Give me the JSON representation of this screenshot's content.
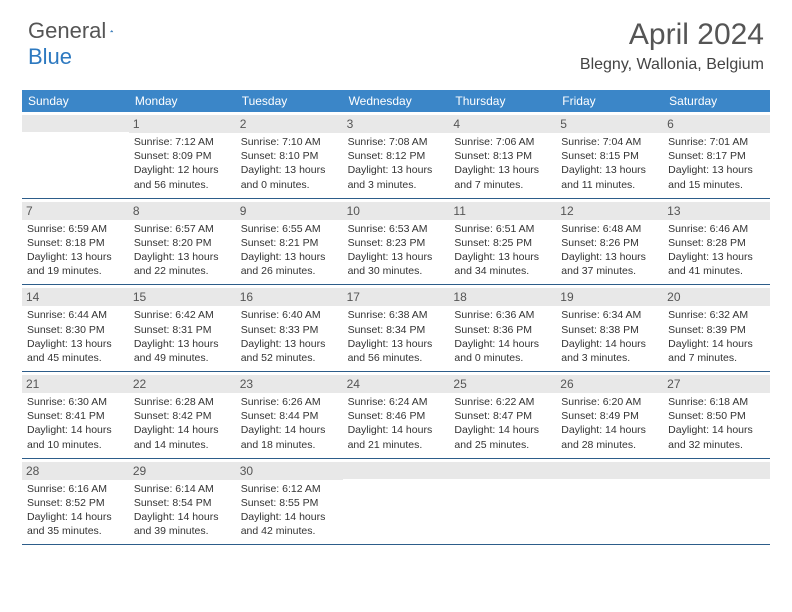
{
  "logo": {
    "text1": "General",
    "text2": "Blue"
  },
  "title": "April 2024",
  "location": "Blegny, Wallonia, Belgium",
  "dayHeaders": [
    "Sunday",
    "Monday",
    "Tuesday",
    "Wednesday",
    "Thursday",
    "Friday",
    "Saturday"
  ],
  "colors": {
    "headerBg": "#3b86c8",
    "borderBottom": "#2d5d8a",
    "dateBarBg": "#e8e8e8",
    "logoBlue": "#2d79c0"
  },
  "weeks": [
    [
      {
        "date": "",
        "sunrise": "",
        "sunset": "",
        "daylight1": "",
        "daylight2": ""
      },
      {
        "date": "1",
        "sunrise": "Sunrise: 7:12 AM",
        "sunset": "Sunset: 8:09 PM",
        "daylight1": "Daylight: 12 hours",
        "daylight2": "and 56 minutes."
      },
      {
        "date": "2",
        "sunrise": "Sunrise: 7:10 AM",
        "sunset": "Sunset: 8:10 PM",
        "daylight1": "Daylight: 13 hours",
        "daylight2": "and 0 minutes."
      },
      {
        "date": "3",
        "sunrise": "Sunrise: 7:08 AM",
        "sunset": "Sunset: 8:12 PM",
        "daylight1": "Daylight: 13 hours",
        "daylight2": "and 3 minutes."
      },
      {
        "date": "4",
        "sunrise": "Sunrise: 7:06 AM",
        "sunset": "Sunset: 8:13 PM",
        "daylight1": "Daylight: 13 hours",
        "daylight2": "and 7 minutes."
      },
      {
        "date": "5",
        "sunrise": "Sunrise: 7:04 AM",
        "sunset": "Sunset: 8:15 PM",
        "daylight1": "Daylight: 13 hours",
        "daylight2": "and 11 minutes."
      },
      {
        "date": "6",
        "sunrise": "Sunrise: 7:01 AM",
        "sunset": "Sunset: 8:17 PM",
        "daylight1": "Daylight: 13 hours",
        "daylight2": "and 15 minutes."
      }
    ],
    [
      {
        "date": "7",
        "sunrise": "Sunrise: 6:59 AM",
        "sunset": "Sunset: 8:18 PM",
        "daylight1": "Daylight: 13 hours",
        "daylight2": "and 19 minutes."
      },
      {
        "date": "8",
        "sunrise": "Sunrise: 6:57 AM",
        "sunset": "Sunset: 8:20 PM",
        "daylight1": "Daylight: 13 hours",
        "daylight2": "and 22 minutes."
      },
      {
        "date": "9",
        "sunrise": "Sunrise: 6:55 AM",
        "sunset": "Sunset: 8:21 PM",
        "daylight1": "Daylight: 13 hours",
        "daylight2": "and 26 minutes."
      },
      {
        "date": "10",
        "sunrise": "Sunrise: 6:53 AM",
        "sunset": "Sunset: 8:23 PM",
        "daylight1": "Daylight: 13 hours",
        "daylight2": "and 30 minutes."
      },
      {
        "date": "11",
        "sunrise": "Sunrise: 6:51 AM",
        "sunset": "Sunset: 8:25 PM",
        "daylight1": "Daylight: 13 hours",
        "daylight2": "and 34 minutes."
      },
      {
        "date": "12",
        "sunrise": "Sunrise: 6:48 AM",
        "sunset": "Sunset: 8:26 PM",
        "daylight1": "Daylight: 13 hours",
        "daylight2": "and 37 minutes."
      },
      {
        "date": "13",
        "sunrise": "Sunrise: 6:46 AM",
        "sunset": "Sunset: 8:28 PM",
        "daylight1": "Daylight: 13 hours",
        "daylight2": "and 41 minutes."
      }
    ],
    [
      {
        "date": "14",
        "sunrise": "Sunrise: 6:44 AM",
        "sunset": "Sunset: 8:30 PM",
        "daylight1": "Daylight: 13 hours",
        "daylight2": "and 45 minutes."
      },
      {
        "date": "15",
        "sunrise": "Sunrise: 6:42 AM",
        "sunset": "Sunset: 8:31 PM",
        "daylight1": "Daylight: 13 hours",
        "daylight2": "and 49 minutes."
      },
      {
        "date": "16",
        "sunrise": "Sunrise: 6:40 AM",
        "sunset": "Sunset: 8:33 PM",
        "daylight1": "Daylight: 13 hours",
        "daylight2": "and 52 minutes."
      },
      {
        "date": "17",
        "sunrise": "Sunrise: 6:38 AM",
        "sunset": "Sunset: 8:34 PM",
        "daylight1": "Daylight: 13 hours",
        "daylight2": "and 56 minutes."
      },
      {
        "date": "18",
        "sunrise": "Sunrise: 6:36 AM",
        "sunset": "Sunset: 8:36 PM",
        "daylight1": "Daylight: 14 hours",
        "daylight2": "and 0 minutes."
      },
      {
        "date": "19",
        "sunrise": "Sunrise: 6:34 AM",
        "sunset": "Sunset: 8:38 PM",
        "daylight1": "Daylight: 14 hours",
        "daylight2": "and 3 minutes."
      },
      {
        "date": "20",
        "sunrise": "Sunrise: 6:32 AM",
        "sunset": "Sunset: 8:39 PM",
        "daylight1": "Daylight: 14 hours",
        "daylight2": "and 7 minutes."
      }
    ],
    [
      {
        "date": "21",
        "sunrise": "Sunrise: 6:30 AM",
        "sunset": "Sunset: 8:41 PM",
        "daylight1": "Daylight: 14 hours",
        "daylight2": "and 10 minutes."
      },
      {
        "date": "22",
        "sunrise": "Sunrise: 6:28 AM",
        "sunset": "Sunset: 8:42 PM",
        "daylight1": "Daylight: 14 hours",
        "daylight2": "and 14 minutes."
      },
      {
        "date": "23",
        "sunrise": "Sunrise: 6:26 AM",
        "sunset": "Sunset: 8:44 PM",
        "daylight1": "Daylight: 14 hours",
        "daylight2": "and 18 minutes."
      },
      {
        "date": "24",
        "sunrise": "Sunrise: 6:24 AM",
        "sunset": "Sunset: 8:46 PM",
        "daylight1": "Daylight: 14 hours",
        "daylight2": "and 21 minutes."
      },
      {
        "date": "25",
        "sunrise": "Sunrise: 6:22 AM",
        "sunset": "Sunset: 8:47 PM",
        "daylight1": "Daylight: 14 hours",
        "daylight2": "and 25 minutes."
      },
      {
        "date": "26",
        "sunrise": "Sunrise: 6:20 AM",
        "sunset": "Sunset: 8:49 PM",
        "daylight1": "Daylight: 14 hours",
        "daylight2": "and 28 minutes."
      },
      {
        "date": "27",
        "sunrise": "Sunrise: 6:18 AM",
        "sunset": "Sunset: 8:50 PM",
        "daylight1": "Daylight: 14 hours",
        "daylight2": "and 32 minutes."
      }
    ],
    [
      {
        "date": "28",
        "sunrise": "Sunrise: 6:16 AM",
        "sunset": "Sunset: 8:52 PM",
        "daylight1": "Daylight: 14 hours",
        "daylight2": "and 35 minutes."
      },
      {
        "date": "29",
        "sunrise": "Sunrise: 6:14 AM",
        "sunset": "Sunset: 8:54 PM",
        "daylight1": "Daylight: 14 hours",
        "daylight2": "and 39 minutes."
      },
      {
        "date": "30",
        "sunrise": "Sunrise: 6:12 AM",
        "sunset": "Sunset: 8:55 PM",
        "daylight1": "Daylight: 14 hours",
        "daylight2": "and 42 minutes."
      },
      {
        "date": "",
        "sunrise": "",
        "sunset": "",
        "daylight1": "",
        "daylight2": ""
      },
      {
        "date": "",
        "sunrise": "",
        "sunset": "",
        "daylight1": "",
        "daylight2": ""
      },
      {
        "date": "",
        "sunrise": "",
        "sunset": "",
        "daylight1": "",
        "daylight2": ""
      },
      {
        "date": "",
        "sunrise": "",
        "sunset": "",
        "daylight1": "",
        "daylight2": ""
      }
    ]
  ]
}
